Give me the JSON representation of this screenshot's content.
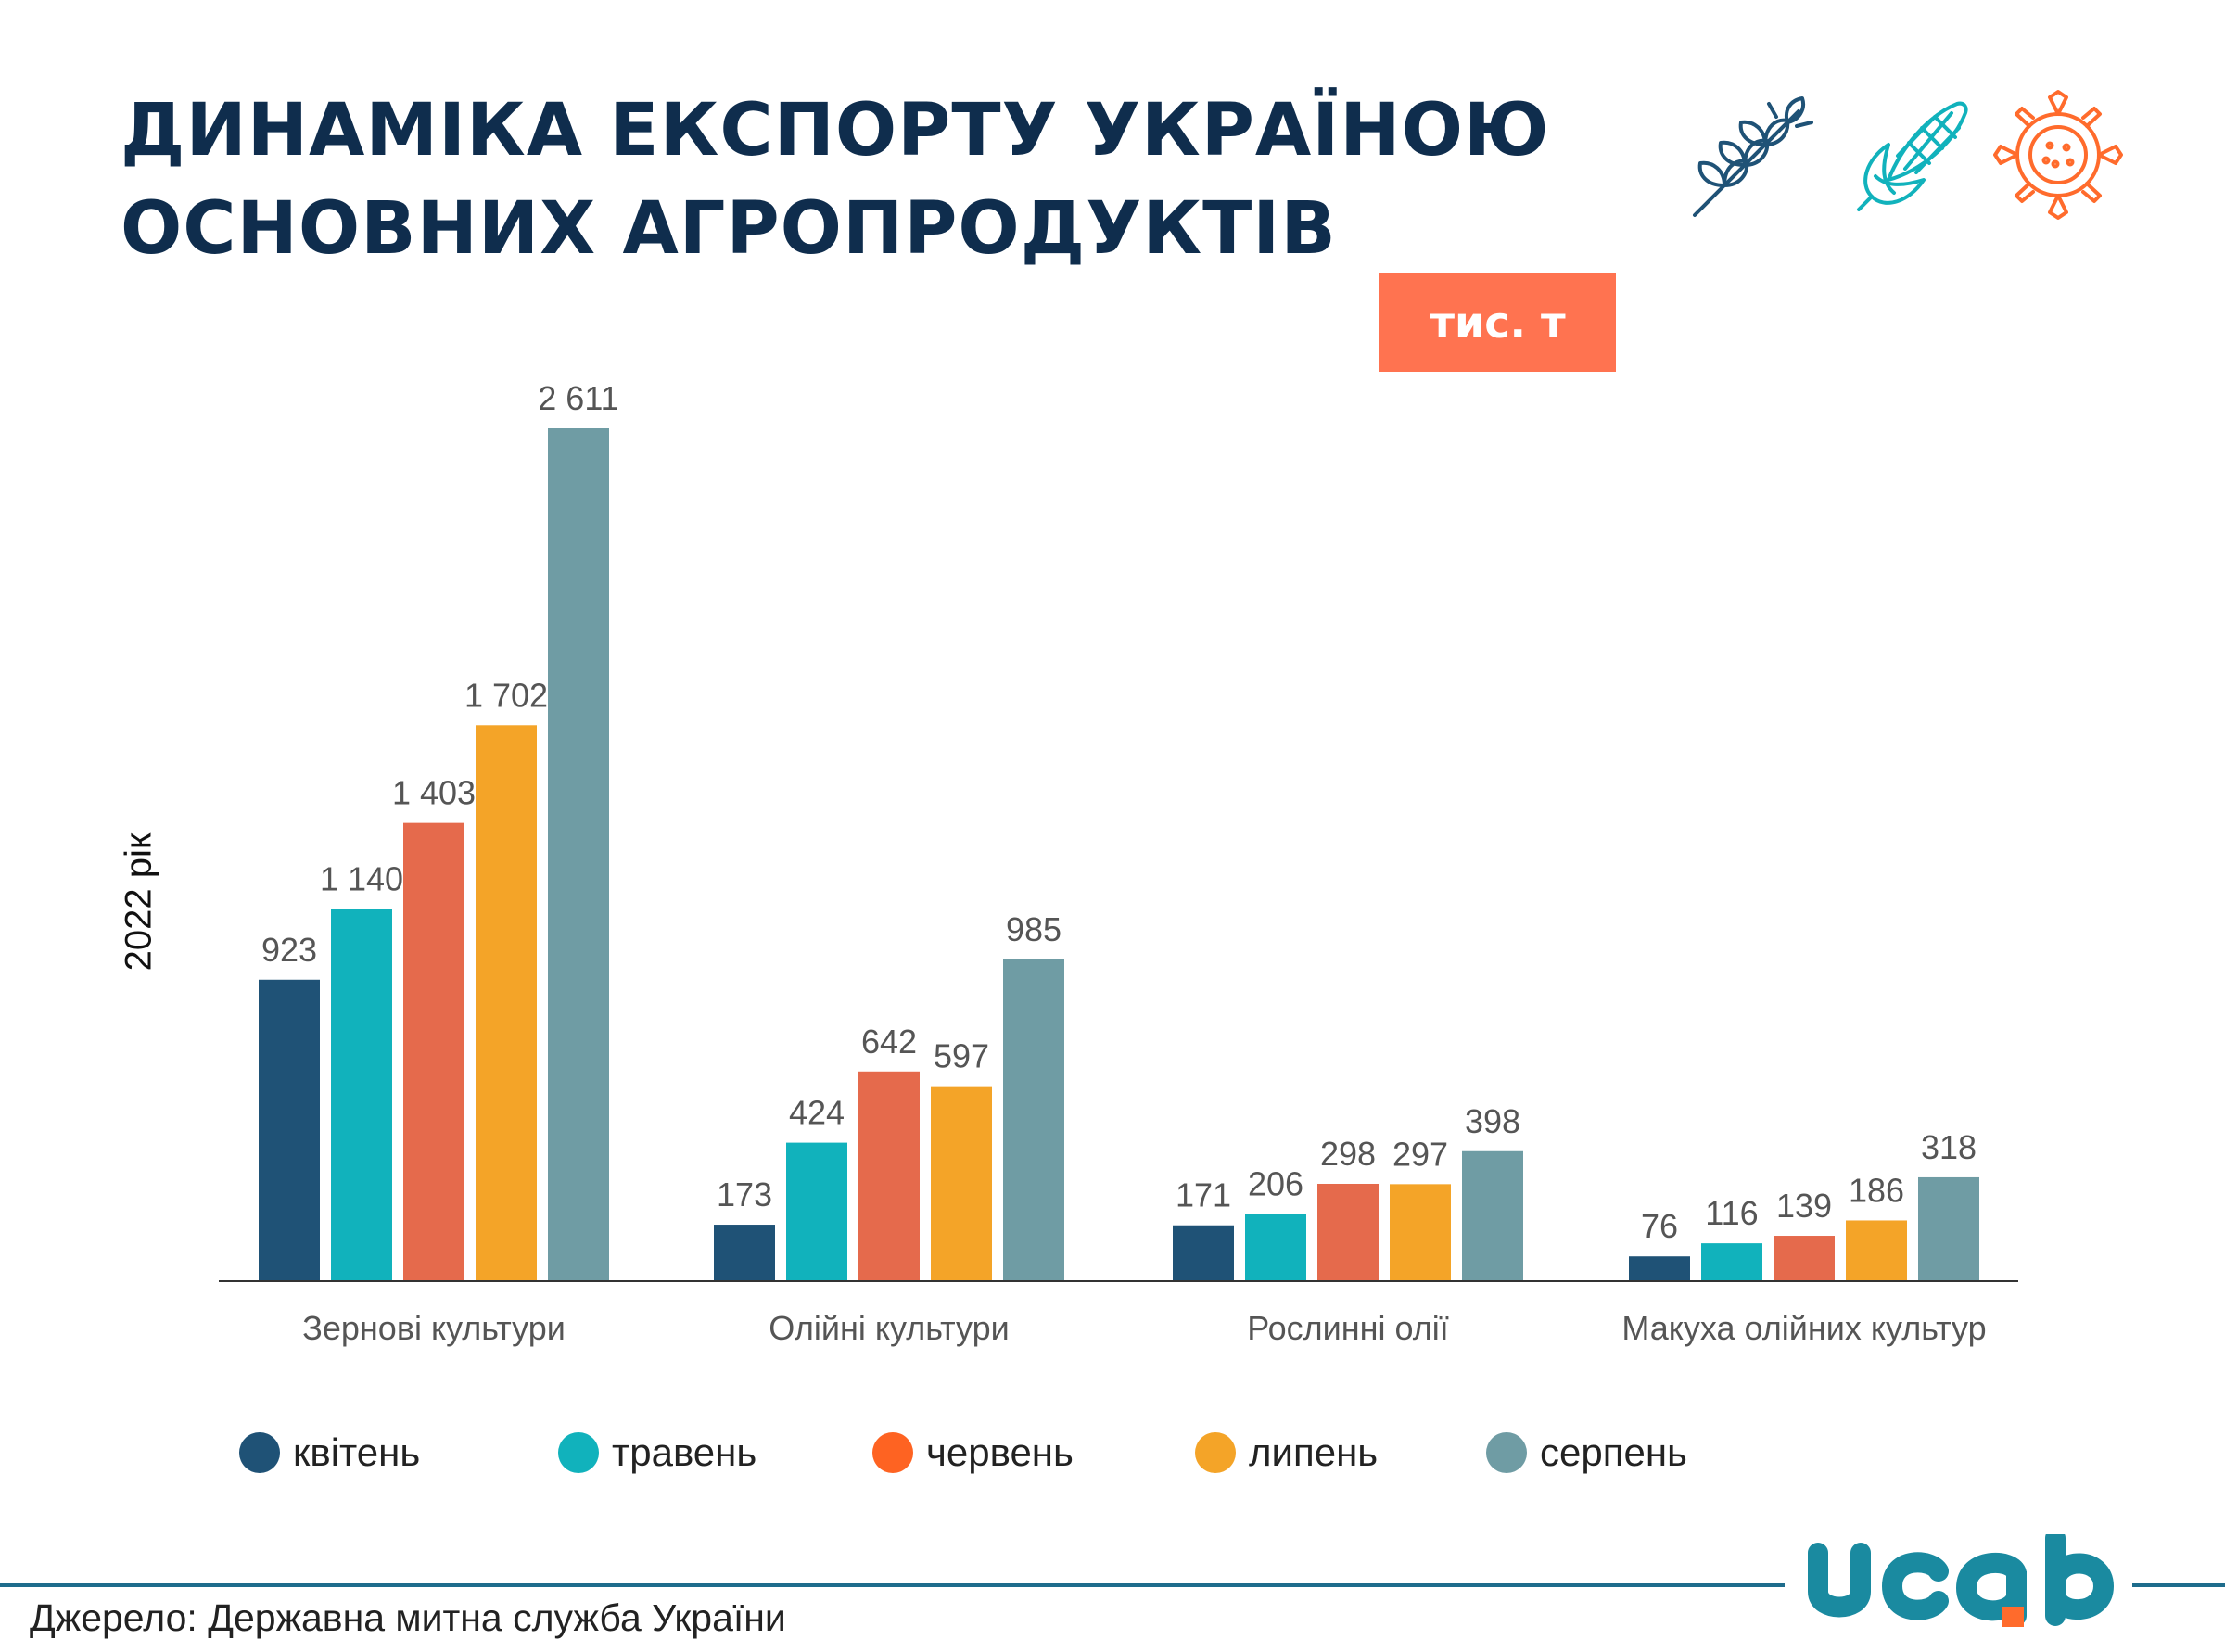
{
  "title_lines": [
    "ДИНАМІКА ЕКСПОРТУ УКРАЇНОЮ",
    "ОСНОВНИХ АГРОПРОДУКТІВ"
  ],
  "unit_badge": "тис. т",
  "header_icons": [
    "wheat-icon",
    "corn-icon",
    "sunflower-icon"
  ],
  "source_text": "Джерело: Державна митна служба України",
  "logo_text": "ucab",
  "colors": {
    "title": "#0f2d4d",
    "badge": "#ff7350",
    "footer_line": "#1e6c8c",
    "logo_teal": "#1a8aa0",
    "logo_orange": "#ff6b2c"
  },
  "chart_data": {
    "type": "bar",
    "title": "ДИНАМІКА ЕКСПОРТУ УКРАЇНОЮ ОСНОВНИХ АГРОПРОДУКТІВ",
    "ylabel": "2022 рік",
    "unit": "тис. т",
    "categories": [
      "Зернові культури",
      "Олійні культури",
      "Рослинні олії",
      "Макуха олійних культур"
    ],
    "series": [
      {
        "name": "квітень",
        "color": "#1f5276",
        "values": [
          923,
          173,
          171,
          76
        ],
        "labels": [
          "923",
          "173",
          "171",
          "76"
        ]
      },
      {
        "name": "травень",
        "color": "#11b2bc",
        "values": [
          1140,
          424,
          206,
          116
        ],
        "labels": [
          "1 140",
          "424",
          "206",
          "116"
        ]
      },
      {
        "name": "червень",
        "color": "#e56a4c",
        "values": [
          1403,
          642,
          298,
          139
        ],
        "labels": [
          "1 403",
          "642",
          "298",
          "139"
        ]
      },
      {
        "name": "липень",
        "color": "#f4a428",
        "values": [
          1702,
          597,
          297,
          186
        ],
        "labels": [
          "1 702",
          "597",
          "297",
          "186"
        ]
      },
      {
        "name": "серпень",
        "color": "#6f9ca4",
        "values": [
          2611,
          985,
          398,
          318
        ],
        "labels": [
          "2 611",
          "985",
          "398",
          "318"
        ]
      }
    ],
    "ylim": [
      0,
      2611
    ],
    "grid": false,
    "legend_position": "bottom",
    "legend_colors": [
      "#1f5276",
      "#11b2bc",
      "#fe6322",
      "#f4a428",
      "#6f9ca4"
    ]
  }
}
